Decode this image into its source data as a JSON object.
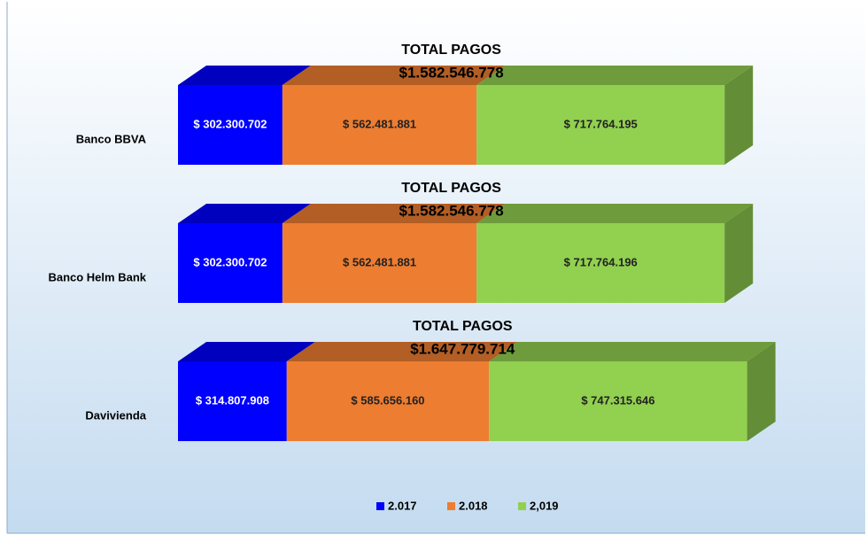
{
  "chart_data": {
    "type": "bar",
    "orientation": "horizontal",
    "stacked": true,
    "categories": [
      "Banco BBVA",
      "Banco Helm Bank",
      "Davivienda"
    ],
    "series": [
      {
        "name": "2.017",
        "color": "#0000ff",
        "values": [
          302300702,
          302300702,
          314807908
        ],
        "value_labels": [
          "$ 302.300.702",
          "$ 302.300.702",
          "$ 314.807.908"
        ]
      },
      {
        "name": "2.018",
        "color": "#ed7d31",
        "values": [
          562481881,
          562481881,
          585656160
        ],
        "value_labels": [
          "$ 562.481.881",
          "$ 562.481.881",
          "$ 585.656.160"
        ]
      },
      {
        "name": "2,019",
        "color": "#92d050",
        "values": [
          717764195,
          717764196,
          747315646
        ],
        "value_labels": [
          "$ 717.764.195",
          "$ 717.764.196",
          "$ 747.315.646"
        ]
      }
    ],
    "annotations": [
      {
        "title": "TOTAL PAGOS",
        "value": 1582546778,
        "label": "$1.582.546.778"
      },
      {
        "title": "TOTAL PAGOS",
        "value": 1582546778,
        "label": "$1.582.546.778"
      },
      {
        "title": "TOTAL PAGOS",
        "value": 1647779714,
        "label": "$1.647.779.714"
      }
    ],
    "legend": "bottom"
  }
}
